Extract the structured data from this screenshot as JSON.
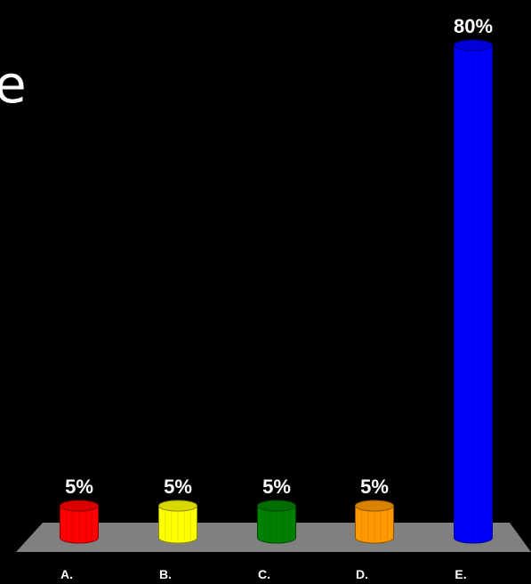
{
  "cut_text": "e",
  "chart_data": {
    "type": "bar",
    "categories": [
      "A.",
      "B.",
      "C.",
      "D.",
      "E."
    ],
    "values": [
      5,
      5,
      5,
      5,
      80
    ],
    "value_labels": [
      "5%",
      "5%",
      "5%",
      "5%",
      "80%"
    ],
    "colors": [
      "#ff0000",
      "#ffff00",
      "#008000",
      "#ff9900",
      "#0000ff"
    ],
    "ylim": [
      0,
      80
    ],
    "style": "3d-cylinder",
    "floor_color": "#808080"
  }
}
